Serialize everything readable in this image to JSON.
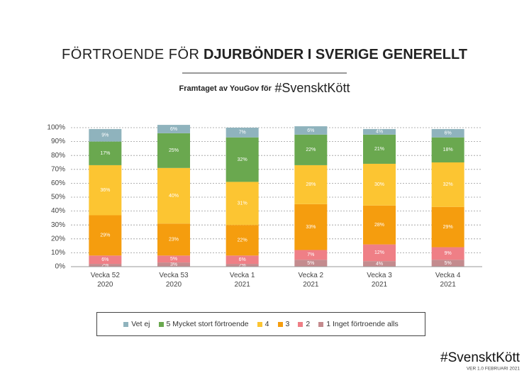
{
  "header": {
    "title_light": "FÖRTROENDE FÖR",
    "title_bold": "DJURBÖNDER I SVERIGE GENERELLT",
    "subtitle": "Framtaget av YouGov för",
    "hashtag": "#SvensktKött"
  },
  "footer": {
    "hashtag": "#SvensktKött",
    "version": "VER 1.0 FEBRUARI 2021"
  },
  "chart_data": {
    "type": "stacked_bar",
    "categories": [
      "Vecka 52\n2020",
      "Vecka 53\n2020",
      "Vecka 1\n2021",
      "Vecka 2\n2021",
      "Vecka 3\n2021",
      "Vecka 4\n2021"
    ],
    "series": [
      {
        "name": "Vet ej",
        "color": "#8fb3bd",
        "values": [
          9,
          6,
          7,
          6,
          4,
          6
        ],
        "value_labels": [
          "9%",
          "6%",
          "7%",
          "6%",
          "4%",
          "6%"
        ]
      },
      {
        "name": "5 Mycket stort förtroende",
        "color": "#6aa84f",
        "values": [
          17,
          25,
          32,
          22,
          21,
          18
        ],
        "value_labels": [
          "17%",
          "25%",
          "32%",
          "22%",
          "21%",
          "18%"
        ]
      },
      {
        "name": "4",
        "color": "#fcc532",
        "values": [
          36,
          40,
          31,
          28,
          30,
          32
        ],
        "value_labels": [
          "36%",
          "40%",
          "31%",
          "28%",
          "30%",
          "32%"
        ]
      },
      {
        "name": "3",
        "color": "#f59d0e",
        "values": [
          29,
          23,
          22,
          33,
          28,
          29
        ],
        "value_labels": [
          "29%",
          "23%",
          "22%",
          "33%",
          "28%",
          "29%"
        ]
      },
      {
        "name": "2",
        "color": "#ef7f86",
        "values": [
          6,
          5,
          6,
          7,
          12,
          9
        ],
        "value_labels": [
          "6%",
          "5%",
          "6%",
          "7%",
          "12%",
          "9%"
        ]
      },
      {
        "name": "1 Inget förtroende alls",
        "color": "#c48b8e",
        "values": [
          2,
          3,
          2,
          5,
          4,
          5
        ],
        "value_labels": [
          "2%",
          "3%",
          "2%",
          "5%",
          "4%",
          "5%"
        ]
      }
    ],
    "ylim": [
      0,
      100
    ],
    "yticks": [
      {
        "value": 0,
        "label": "0%"
      },
      {
        "value": 10,
        "label": "10%"
      },
      {
        "value": 20,
        "label": "20%"
      },
      {
        "value": 30,
        "label": "30%"
      },
      {
        "value": 40,
        "label": "40%"
      },
      {
        "value": 50,
        "label": "50%"
      },
      {
        "value": 60,
        "label": "60%"
      },
      {
        "value": 70,
        "label": "70%"
      },
      {
        "value": 80,
        "label": "80%"
      },
      {
        "value": 90,
        "label": "90%"
      },
      {
        "value": 100,
        "label": "100%"
      }
    ],
    "grid": true
  }
}
